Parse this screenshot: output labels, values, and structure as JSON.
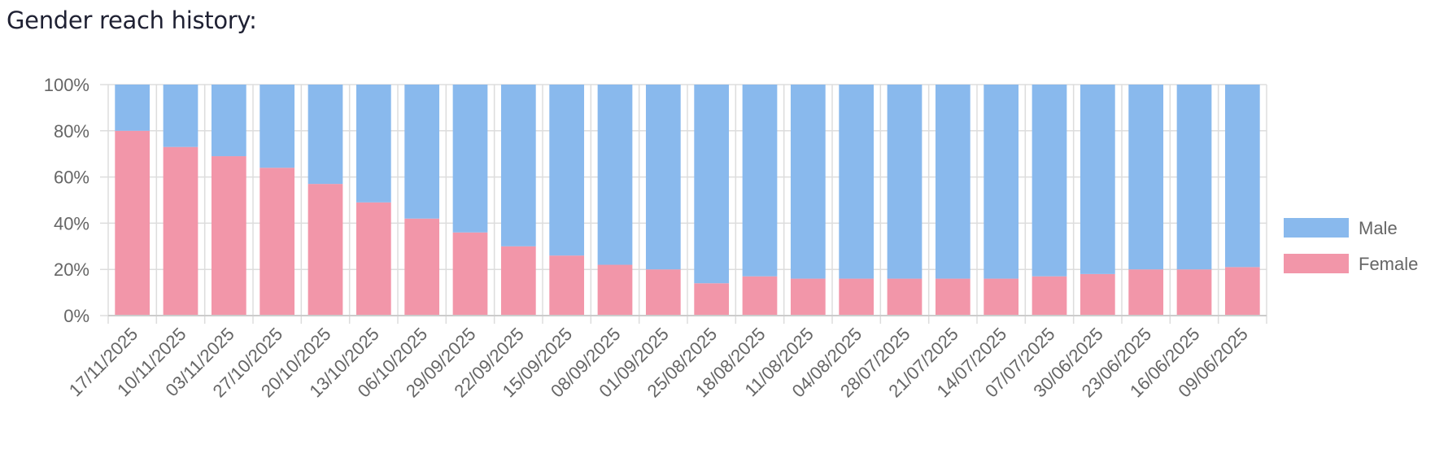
{
  "header": {
    "title": "Gender reach history:"
  },
  "colors": {
    "male": "#89b9ed",
    "female": "#f296a9",
    "grid": "#dddddd",
    "axis": "#cccccc"
  },
  "chart_data": {
    "type": "bar",
    "stacked": true,
    "categories": [
      "17/11/2025",
      "10/11/2025",
      "03/11/2025",
      "27/10/2025",
      "20/10/2025",
      "13/10/2025",
      "06/10/2025",
      "29/09/2025",
      "22/09/2025",
      "15/09/2025",
      "08/09/2025",
      "01/09/2025",
      "25/08/2025",
      "18/08/2025",
      "11/08/2025",
      "04/08/2025",
      "28/07/2025",
      "21/07/2025",
      "14/07/2025",
      "07/07/2025",
      "30/06/2025",
      "23/06/2025",
      "16/06/2025",
      "09/06/2025"
    ],
    "series": [
      {
        "name": "Male",
        "values": [
          20,
          27,
          31,
          36,
          43,
          51,
          58,
          64,
          70,
          74,
          78,
          80,
          86,
          83,
          84,
          84,
          84,
          84,
          84,
          83,
          82,
          80,
          80,
          79
        ]
      },
      {
        "name": "Female",
        "values": [
          80,
          73,
          69,
          64,
          57,
          49,
          42,
          36,
          30,
          26,
          22,
          20,
          14,
          17,
          16,
          16,
          16,
          16,
          16,
          17,
          18,
          20,
          20,
          21
        ]
      }
    ],
    "yticks": [
      "0%",
      "20%",
      "40%",
      "60%",
      "80%",
      "100%"
    ],
    "ylim": [
      0,
      100
    ],
    "grid": true,
    "legend": "right"
  }
}
